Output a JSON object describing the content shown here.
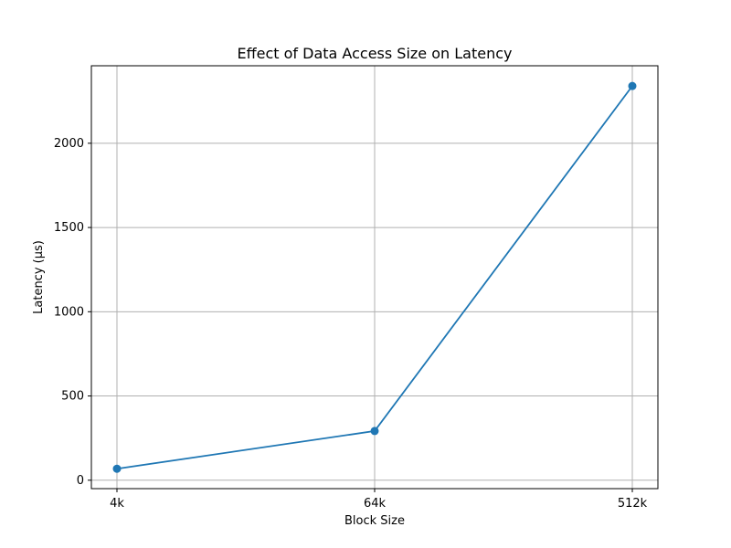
{
  "chart_data": {
    "type": "line",
    "title": "Effect of Data Access Size on Latency",
    "xlabel": "Block Size",
    "ylabel": "Latency (μs)",
    "categories": [
      "4k",
      "64k",
      "512k"
    ],
    "series": [
      {
        "values": [
          68,
          292,
          2340
        ],
        "color": "#1f77b4",
        "marker": "circle"
      }
    ],
    "yticks": [
      0,
      500,
      1000,
      1500,
      2000
    ],
    "ylim": [
      -50,
      2460
    ],
    "grid": true,
    "legend": "none",
    "axes_color": "#000000",
    "grid_color": "#b0b0b0"
  }
}
